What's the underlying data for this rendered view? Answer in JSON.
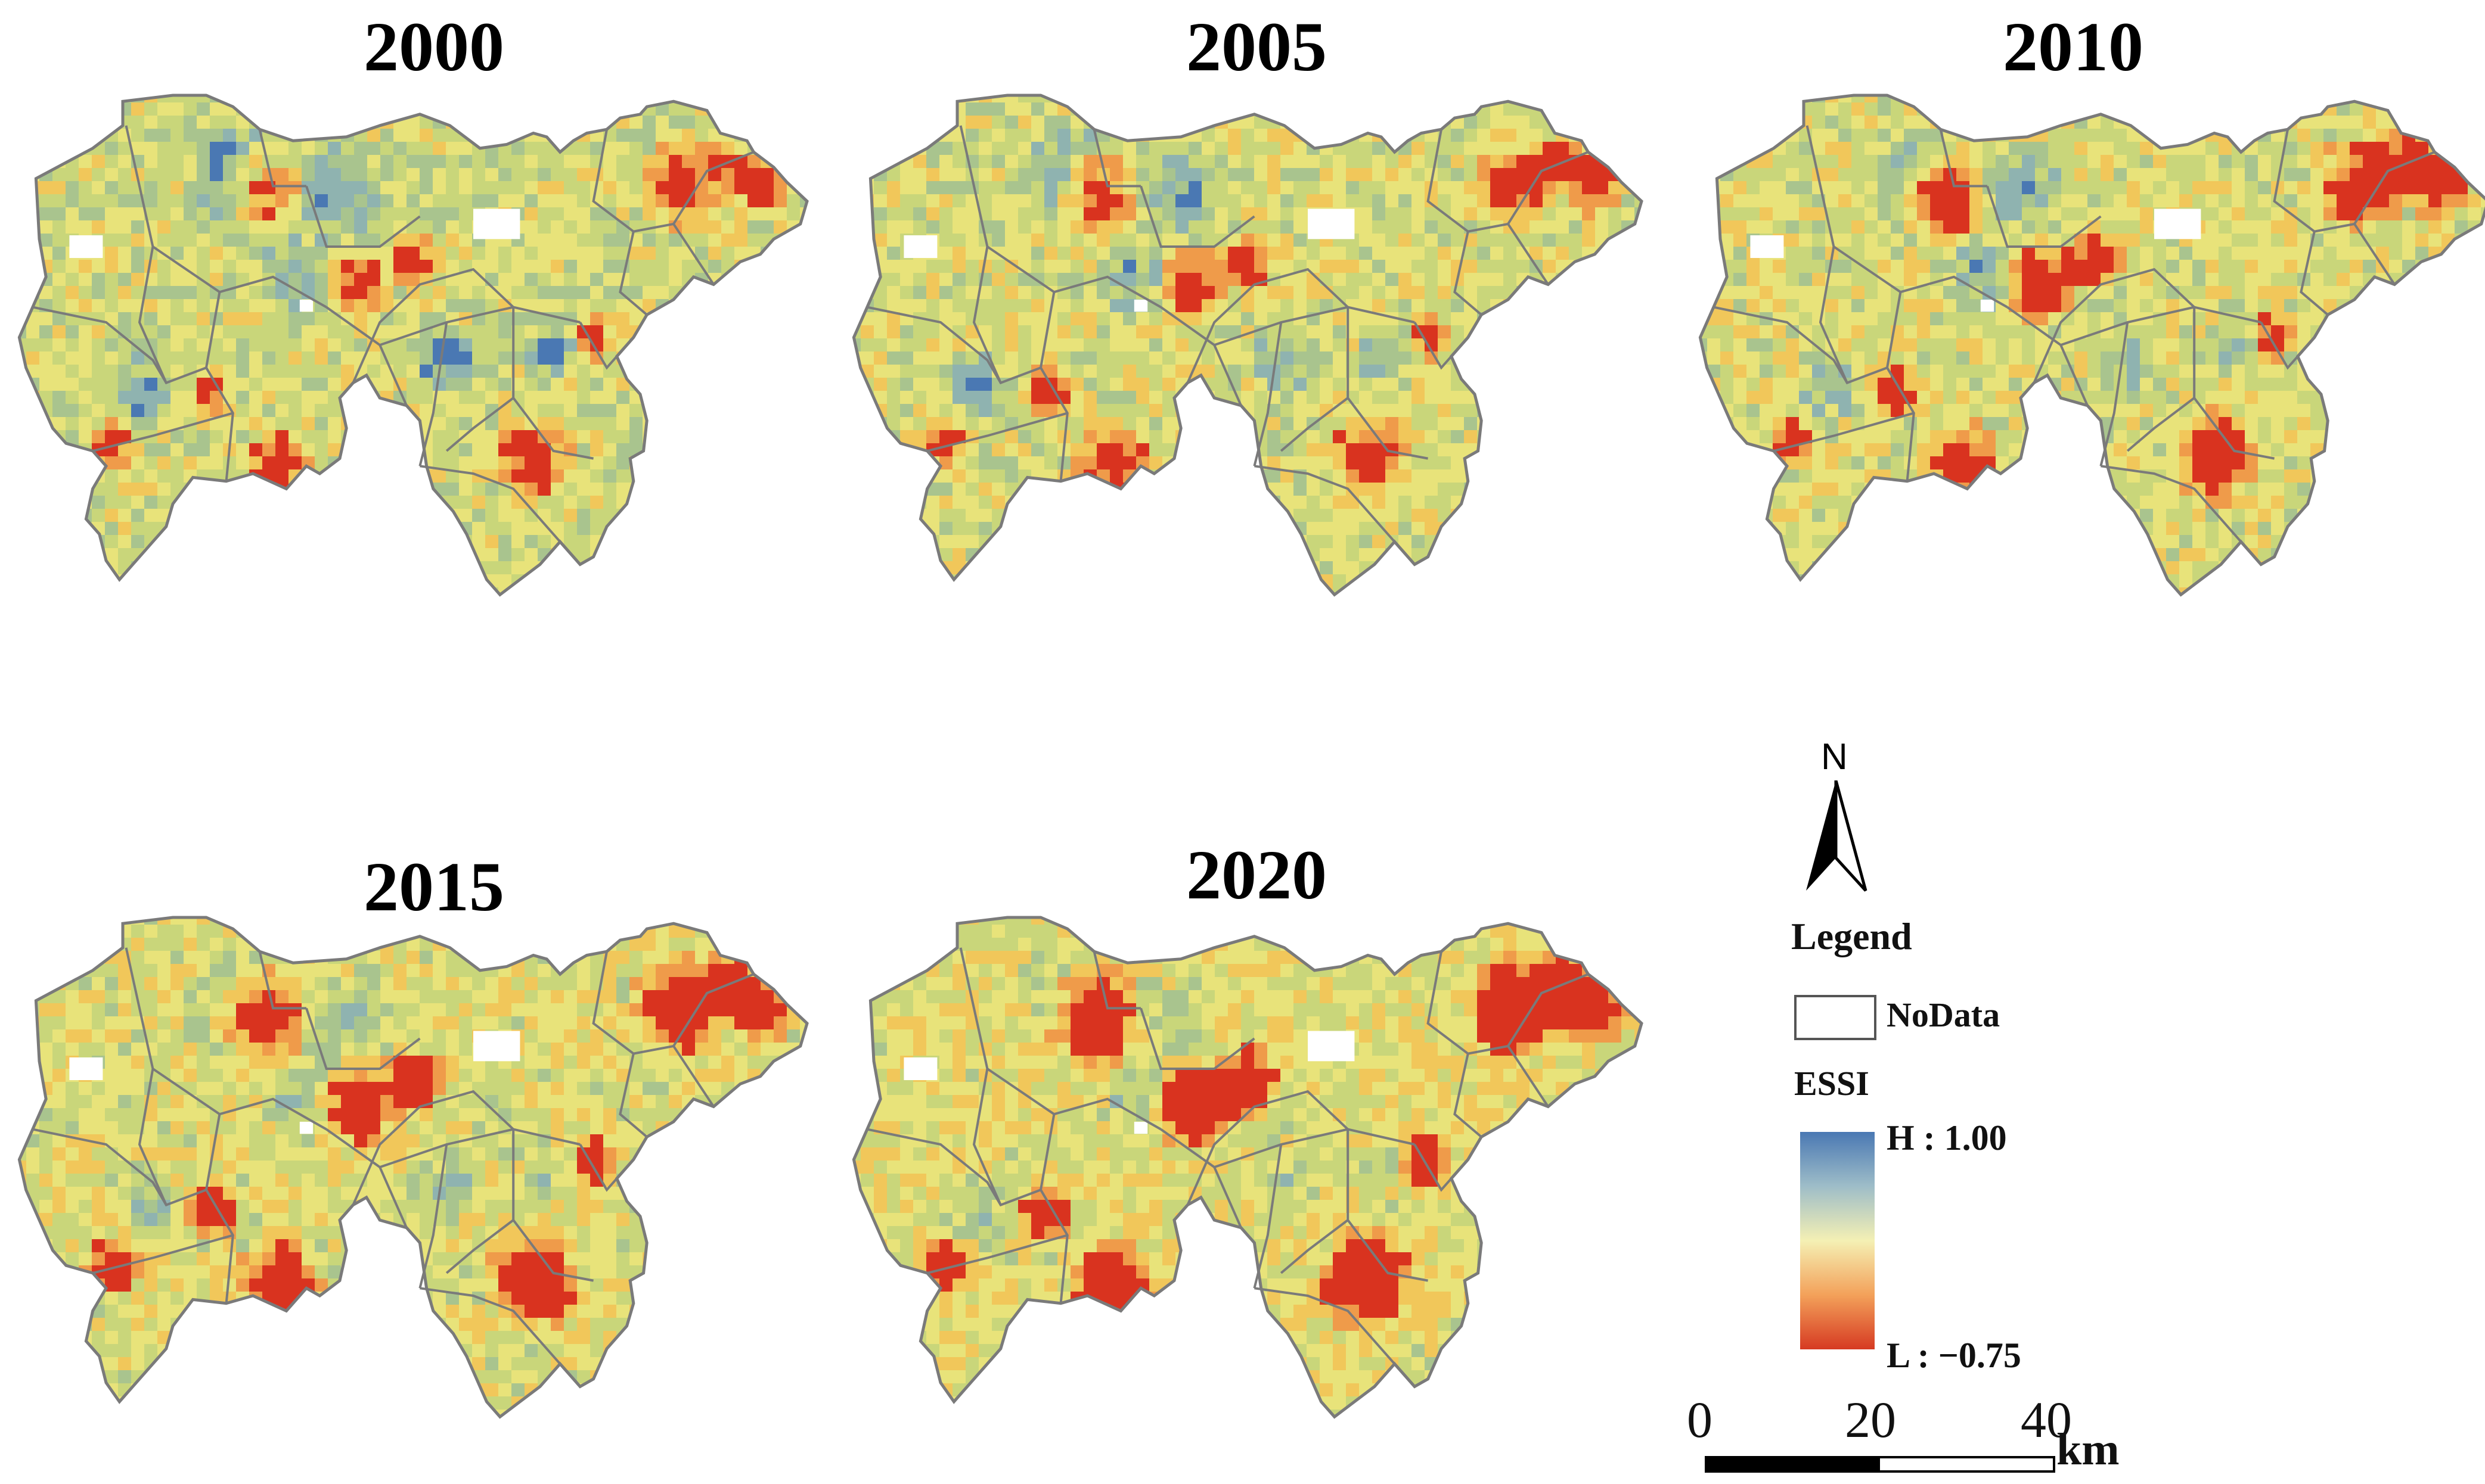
{
  "panels": [
    {
      "year": "2000"
    },
    {
      "year": "2005"
    },
    {
      "year": "2010"
    },
    {
      "year": "2015"
    },
    {
      "year": "2020"
    }
  ],
  "north_arrow": {
    "letter": "N",
    "icon": "north-arrow-icon"
  },
  "legend": {
    "title": "Legend",
    "nodata_label": "NoData",
    "index_label": "ESSI",
    "high_label": "H : 1.00",
    "low_label": "L : −0.75",
    "gradient_colors": [
      "#4a78b3",
      "#9ebdc8",
      "#f4f0b4",
      "#f3a15a",
      "#d63a22"
    ]
  },
  "scale_bar": {
    "ticks": [
      "0",
      "20",
      "40"
    ],
    "unit": "km"
  },
  "colors": {
    "high": "#4a78b3",
    "mid_high": "#9dbb98",
    "mid": "#e6e17a",
    "mid_low": "#f2a84e",
    "low": "#d9331f",
    "boundary": "#7a7a7a"
  }
}
